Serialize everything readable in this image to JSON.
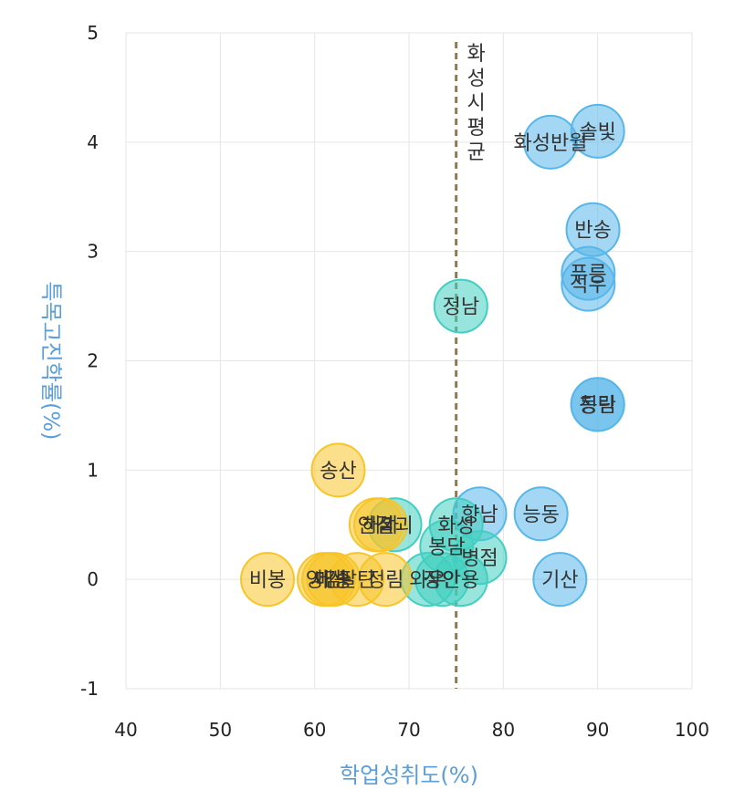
{
  "chart_data": {
    "type": "scatter",
    "title": "",
    "xlabel": "학업성취도(%)",
    "ylabel": "특목고진학률(%)",
    "xlim": [
      40,
      100
    ],
    "ylim": [
      -1,
      5
    ],
    "xticks": [
      40,
      50,
      60,
      70,
      80,
      90,
      100
    ],
    "yticks": [
      -1,
      0,
      1,
      2,
      3,
      4,
      5
    ],
    "grid": true,
    "legend": "none",
    "reference_line": {
      "x": 75,
      "label": "화성시평균"
    },
    "colors": {
      "blue": "#58b7e9",
      "teal": "#42cfc0",
      "yellow": "#f7c52a"
    },
    "points": [
      {
        "name": "솔빛",
        "x": 90,
        "y": 4.1,
        "group": "blue"
      },
      {
        "name": "화성반월",
        "x": 85,
        "y": 4.0,
        "group": "blue"
      },
      {
        "name": "반송",
        "x": 89.5,
        "y": 3.2,
        "group": "blue"
      },
      {
        "name": "푸른",
        "x": 89,
        "y": 2.8,
        "group": "blue"
      },
      {
        "name": "석우",
        "x": 89,
        "y": 2.7,
        "group": "blue"
      },
      {
        "name": "동탄",
        "x": 90,
        "y": 1.6,
        "group": "blue"
      },
      {
        "name": "청림",
        "x": 90,
        "y": 1.6,
        "group": "blue"
      },
      {
        "name": "능동",
        "x": 84,
        "y": 0.6,
        "group": "blue"
      },
      {
        "name": "기산",
        "x": 86,
        "y": 0.0,
        "group": "blue"
      },
      {
        "name": "향남",
        "x": 77.5,
        "y": 0.6,
        "group": "blue"
      },
      {
        "name": "정남",
        "x": 75.5,
        "y": 2.5,
        "group": "teal"
      },
      {
        "name": "화성",
        "x": 75,
        "y": 0.5,
        "group": "teal"
      },
      {
        "name": "봉담",
        "x": 74,
        "y": 0.3,
        "group": "teal"
      },
      {
        "name": "병점",
        "x": 77.5,
        "y": 0.2,
        "group": "teal"
      },
      {
        "name": "안용",
        "x": 75.5,
        "y": 0.0,
        "group": "teal"
      },
      {
        "name": "장안",
        "x": 73.5,
        "y": 0.0,
        "group": "teal"
      },
      {
        "name": "와우",
        "x": 72,
        "y": 0.0,
        "group": "teal"
      },
      {
        "name": "삼괴",
        "x": 68.5,
        "y": 0.5,
        "group": "teal"
      },
      {
        "name": "송산",
        "x": 62.5,
        "y": 1.0,
        "group": "yellow"
      },
      {
        "name": "안결",
        "x": 66.5,
        "y": 0.5,
        "group": "yellow"
      },
      {
        "name": "해가",
        "x": 67,
        "y": 0.5,
        "group": "yellow"
      },
      {
        "name": "비봉",
        "x": 55,
        "y": 0.0,
        "group": "yellow"
      },
      {
        "name": "양감",
        "x": 61,
        "y": 0.0,
        "group": "yellow"
      },
      {
        "name": "서신",
        "x": 61.5,
        "y": 0.0,
        "group": "yellow"
      },
      {
        "name": "매송",
        "x": 62,
        "y": 0.0,
        "group": "yellow"
      },
      {
        "name": "팔탄",
        "x": 64.5,
        "y": 0.0,
        "group": "yellow"
      },
      {
        "name": "정림",
        "x": 67.5,
        "y": 0.0,
        "group": "yellow"
      }
    ]
  }
}
